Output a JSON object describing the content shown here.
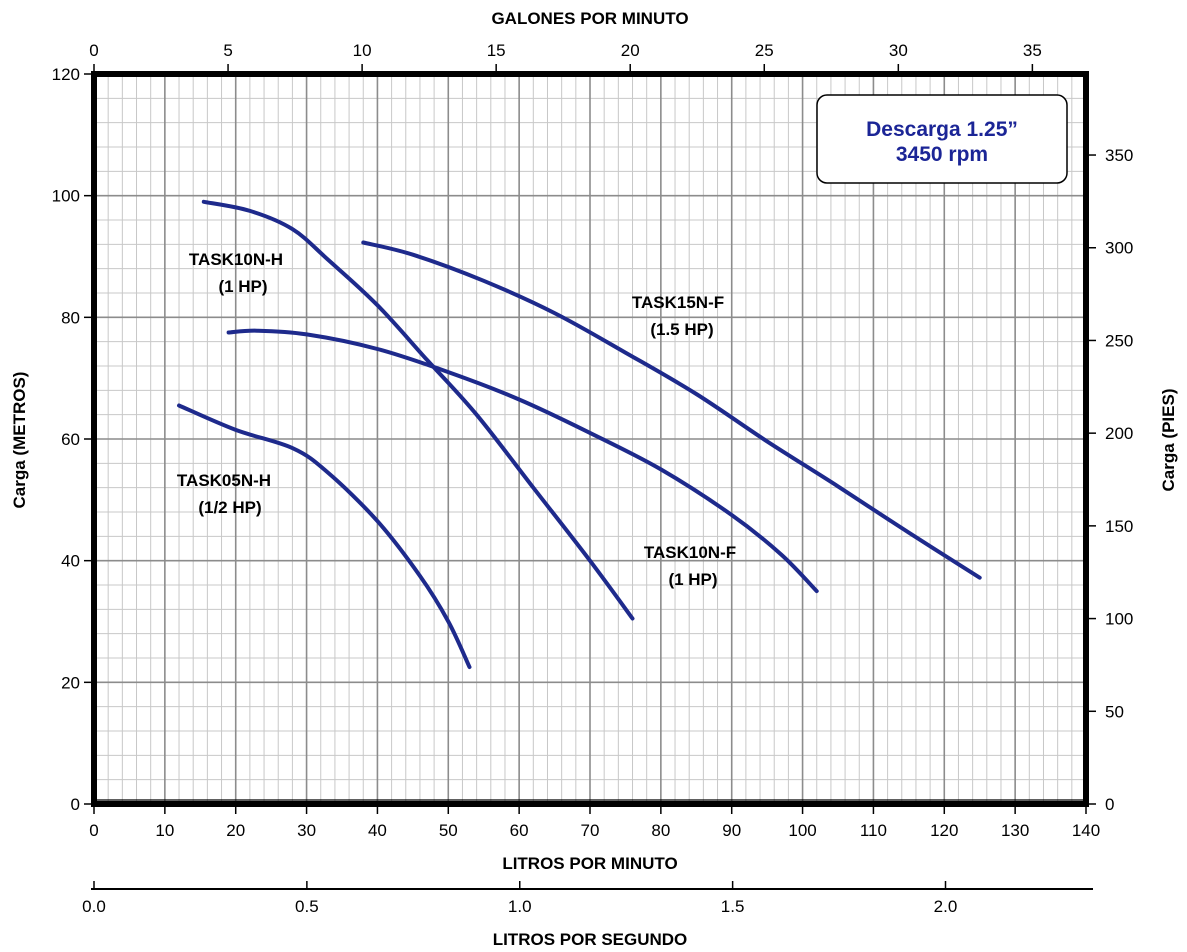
{
  "chart_data": {
    "type": "line",
    "top_axis": {
      "title": "GALONES POR MINUTO",
      "range": [
        0,
        37
      ],
      "ticks": [
        0,
        5,
        10,
        15,
        20,
        25,
        30,
        35
      ]
    },
    "bottom_axis": {
      "title": "LITROS POR MINUTO",
      "range": [
        0,
        140
      ],
      "ticks": [
        0,
        10,
        20,
        30,
        40,
        50,
        60,
        70,
        80,
        90,
        100,
        110,
        120,
        130,
        140
      ]
    },
    "secondary_bottom_axis": {
      "title": "LITROS POR SEGUNDO",
      "range": [
        0,
        2.33
      ],
      "tick_labels": [
        "0.0",
        "0.5",
        "1.0",
        "1.5",
        "2.0"
      ]
    },
    "left_axis": {
      "title": "Carga (METROS)",
      "range": [
        0,
        120
      ],
      "ticks": [
        0,
        20,
        40,
        60,
        80,
        100,
        120
      ]
    },
    "right_axis": {
      "title": "Carga (PIES)",
      "range": [
        0,
        393.7
      ],
      "ticks": [
        0,
        50,
        100,
        150,
        200,
        250,
        300,
        350
      ]
    },
    "grid": true,
    "note": {
      "line1": "Descarga 1.25”",
      "line2": "3450 rpm"
    },
    "series": [
      {
        "name": "TASK05N-H",
        "hp": "(1/2 HP)",
        "color": "#1e2a8c",
        "x": [
          12,
          20,
          28,
          33,
          40,
          46,
          50,
          53
        ],
        "y": [
          65.5,
          61.5,
          58.5,
          54.5,
          46.5,
          37.5,
          30,
          22.5
        ]
      },
      {
        "name": "TASK10N-H",
        "hp": "(1 HP)",
        "color": "#1e2a8c",
        "x": [
          15.5,
          22,
          28,
          33,
          40,
          47,
          54,
          62,
          70,
          76
        ],
        "y": [
          99,
          97.5,
          94.5,
          89.5,
          82,
          73,
          64,
          52,
          40,
          30.5
        ]
      },
      {
        "name": "TASK10N-F",
        "hp": "(1 HP)",
        "color": "#1e2a8c",
        "x": [
          19,
          23,
          30,
          40,
          50,
          60,
          70,
          80,
          90,
          97,
          102
        ],
        "y": [
          77.5,
          77.8,
          77.2,
          74.8,
          71,
          66.5,
          61,
          55,
          47.5,
          41,
          35
        ]
      },
      {
        "name": "TASK15N-F",
        "hp": "(1.5 HP)",
        "color": "#1e2a8c",
        "x": [
          38,
          45,
          55,
          65,
          75,
          85,
          95,
          105,
          115,
          125
        ],
        "y": [
          92.3,
          90.3,
          86,
          80.7,
          74.2,
          67.4,
          59.6,
          52.2,
          44.6,
          37.2
        ]
      }
    ]
  }
}
